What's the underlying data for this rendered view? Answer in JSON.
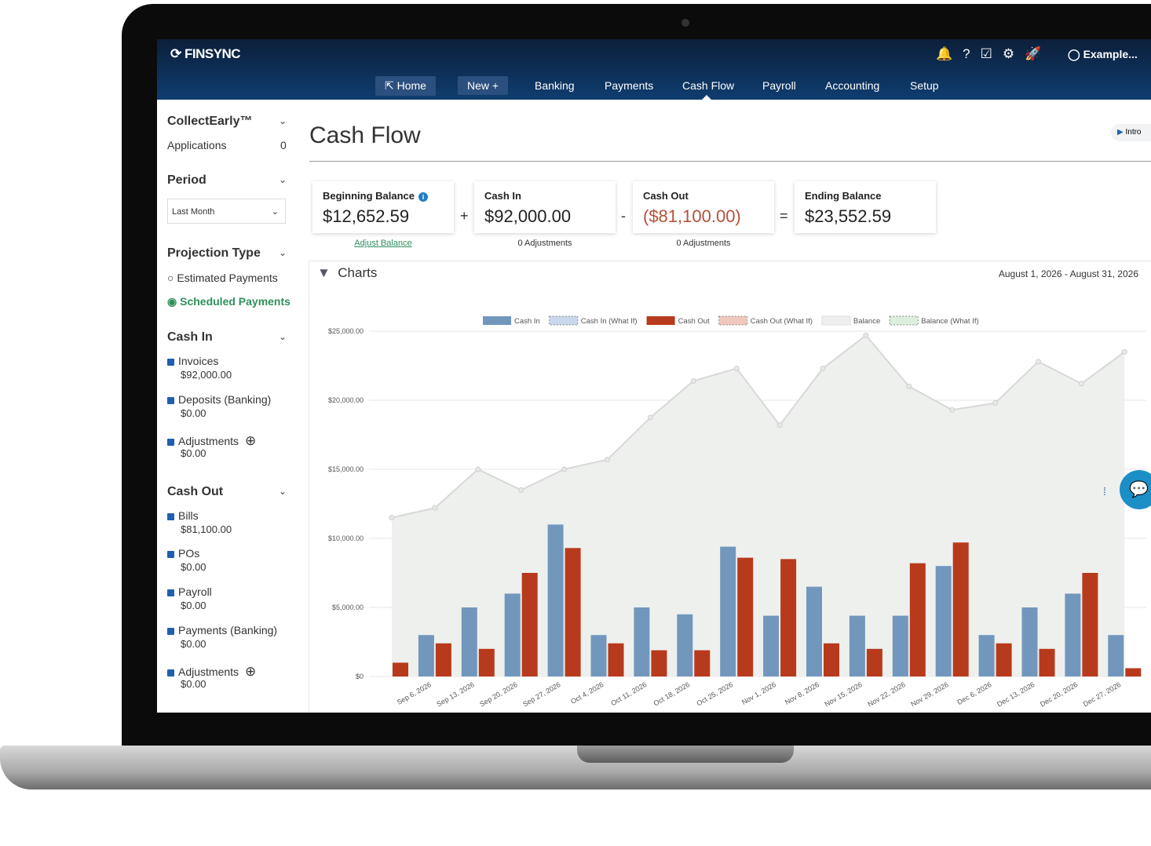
{
  "header": {
    "brand": "FINSYNC",
    "user": "Example..."
  },
  "nav": [
    "Home",
    "New +",
    "Banking",
    "Payments",
    "Cash Flow",
    "Payroll",
    "Accounting",
    "Setup"
  ],
  "sidebar": {
    "collect": {
      "title": "CollectEarly™",
      "label": "Applications",
      "count": "0"
    },
    "period": {
      "title": "Period",
      "select": "Last Month"
    },
    "projection": {
      "title": "Projection Type",
      "options": [
        "Estimated Payments",
        "Scheduled Payments"
      ]
    },
    "cash_in": {
      "title": "Cash In",
      "items": [
        {
          "label": "Invoices",
          "amount": "$92,000.00"
        },
        {
          "label": "Deposits (Banking)",
          "amount": "$0.00"
        },
        {
          "label": "Adjustments",
          "amount": "$0.00"
        }
      ]
    },
    "cash_out": {
      "title": "Cash Out",
      "items": [
        {
          "label": "Bills",
          "amount": "$81,100.00"
        },
        {
          "label": "POs",
          "amount": "$0.00"
        },
        {
          "label": "Payroll",
          "amount": "$0.00"
        },
        {
          "label": "Payments (Banking)",
          "amount": "$0.00"
        },
        {
          "label": "Adjustments",
          "amount": "$0.00"
        }
      ]
    }
  },
  "page": {
    "title": "Cash Flow",
    "intro": "Intro"
  },
  "summary": [
    {
      "label": "Beginning Balance",
      "amount": "$12,652.59",
      "note": "Adjust Balance"
    },
    {
      "label": "Cash In",
      "amount": "$92,000.00",
      "note": "0 Adjustments"
    },
    {
      "label": "Cash Out",
      "amount": "($81,100.00)",
      "note": "0 Adjustments"
    },
    {
      "label": "Ending Balance",
      "amount": "$23,552.59"
    }
  ],
  "operators": [
    "+",
    "-",
    "="
  ],
  "charts_panel": {
    "title": "Charts",
    "range": "August 1, 2026 - August 31, 2026"
  },
  "chart_data": {
    "type": "bar",
    "categories": [
      null,
      "Sep 6, 2026",
      "Sep 13, 2026",
      "Sep 20, 2026",
      "Sep 27, 2026",
      "Oct 4, 2026",
      "Oct 11, 2026",
      "Oct 18, 2026",
      "Oct 25, 2026",
      "Nov 1, 2026",
      "Nov 8, 2026",
      "Nov 15, 2026",
      "Nov 22, 2026",
      "Nov 29, 2026",
      "Dec 6, 2026",
      "Dec 13, 2026",
      "Dec 20, 2026",
      "Dec 27, 2026"
    ],
    "series": [
      {
        "name": "Cash In",
        "type": "bar",
        "color": "#7297bd",
        "values": [
          0,
          3000,
          5000,
          6000,
          11000,
          3000,
          5000,
          4500,
          9400,
          4400,
          6500,
          4400,
          4400,
          8000,
          3000,
          5000,
          6000,
          3000
        ]
      },
      {
        "name": "Cash In (What If)",
        "type": "bar",
        "color": "#c9d8ea",
        "dashed": true,
        "values": [
          null,
          null,
          null,
          null,
          null,
          null,
          null,
          null,
          null,
          null,
          null,
          null,
          null,
          null,
          null,
          null,
          null,
          null
        ]
      },
      {
        "name": "Cash Out",
        "type": "bar",
        "color": "#b83a1c",
        "values": [
          1000,
          2400,
          2000,
          7500,
          9300,
          2400,
          1900,
          1900,
          8600,
          8500,
          2400,
          2000,
          8200,
          9700,
          2400,
          2000,
          7500,
          600
        ]
      },
      {
        "name": "Cash Out (What If)",
        "type": "bar",
        "color": "#f0c8bd",
        "dashed": true,
        "values": [
          null,
          null,
          null,
          null,
          null,
          null,
          null,
          null,
          null,
          null,
          null,
          null,
          null,
          null,
          null,
          null,
          null,
          null
        ]
      },
      {
        "name": "Balance",
        "type": "area",
        "color": "#eef0ee",
        "values": [
          11500,
          12200,
          15000,
          13500,
          15000,
          15700,
          18750,
          21400,
          22300,
          18200,
          22300,
          24700,
          21000,
          19300,
          19800,
          22800,
          21200,
          23500
        ]
      },
      {
        "name": "Balance (What If)",
        "type": "area",
        "color": "#dcefdc",
        "dashed": true,
        "values": [
          null,
          null,
          null,
          null,
          null,
          null,
          null,
          null,
          null,
          null,
          null,
          null,
          null,
          null,
          null,
          null,
          null,
          null
        ]
      }
    ],
    "ylim": [
      0,
      25000
    ],
    "yticks": [
      {
        "value": 0,
        "label": "$0"
      },
      {
        "value": 5000,
        "label": "$5,000.00"
      },
      {
        "value": 10000,
        "label": "$10,000.00"
      },
      {
        "value": 15000,
        "label": "$15,000.00"
      },
      {
        "value": 20000,
        "label": "$20,000.00"
      },
      {
        "value": 25000,
        "label": "$25,000.00"
      }
    ],
    "grid": true
  }
}
